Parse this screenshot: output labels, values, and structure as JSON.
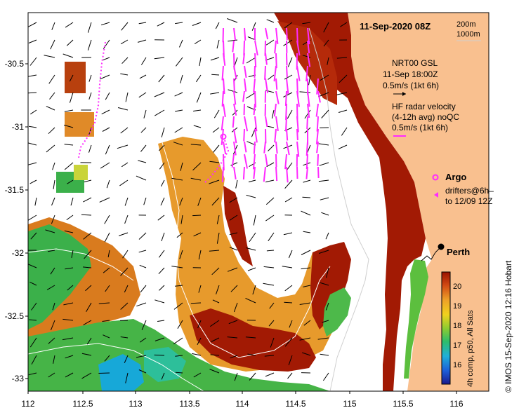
{
  "title": "11-Sep-2020 08Z",
  "isobaths": [
    "200m",
    "1000m"
  ],
  "legend": {
    "gsl_title": "NRT00 GSL",
    "gsl_time": "11-Sep 18:00Z",
    "gsl_scale": "0.5m/s (1kt 6h)",
    "hf_title": "HF radar velocity",
    "hf_sub": "(4-12h avg) noQC",
    "hf_scale": "0.5m/s (1kt 6h)",
    "argo": "Argo",
    "drifters1": "drifters@6h–",
    "drifters2": "to 12/09 12Z"
  },
  "city": "Perth",
  "colorbar": {
    "ticks": [
      "20",
      "19",
      "18",
      "17",
      "16"
    ],
    "label": "4h comp, p50, All Sats"
  },
  "credit": "©  IMOS 15-Sep-2020 12:16 Hobart",
  "axes": {
    "x_ticks": [
      "112",
      "112.5",
      "113",
      "113.5",
      "114",
      "114.5",
      "115",
      "115.5",
      "116"
    ],
    "y_ticks": [
      "-30.5",
      "-31",
      "-31.5",
      "-32",
      "-32.5",
      "-33"
    ]
  },
  "colors": {
    "land": "#f9c08f",
    "sst_warm": "#a01800",
    "sst_mid": "#e39a2a",
    "sst_green": "#3bb04a",
    "sst_cool": "#17a8d8",
    "vector_magenta": "#ff2bff"
  }
}
